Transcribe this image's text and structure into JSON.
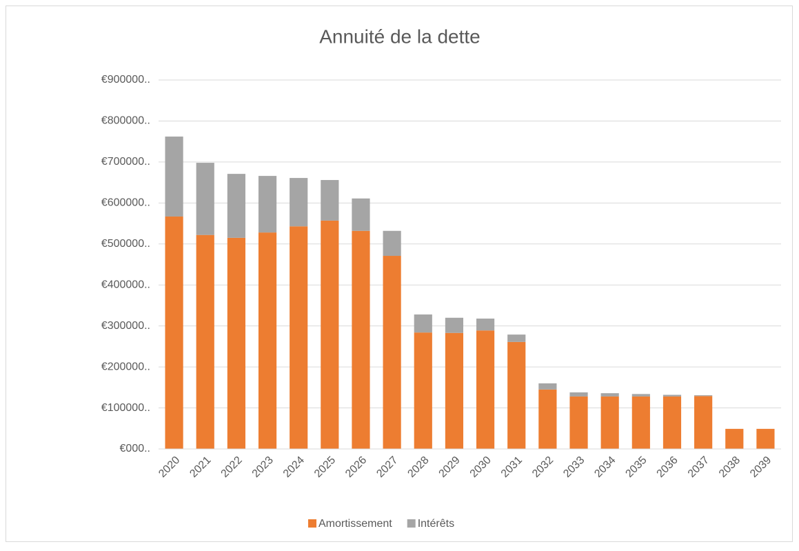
{
  "chart_data": {
    "type": "stacked_bar",
    "title": "Annuité de la dette",
    "categories": [
      "2020",
      "2021",
      "2022",
      "2023",
      "2024",
      "2025",
      "2026",
      "2027",
      "2028",
      "2029",
      "2030",
      "2031",
      "2032",
      "2033",
      "2034",
      "2035",
      "2036",
      "2037",
      "2038",
      "2039"
    ],
    "series": [
      {
        "name": "Amortissement",
        "color": "#ed7d31",
        "values": [
          567000,
          522000,
          515000,
          528000,
          543000,
          557000,
          532000,
          471000,
          284000,
          283000,
          289000,
          261000,
          145000,
          128000,
          128000,
          128000,
          128000,
          129000,
          49000,
          49000
        ]
      },
      {
        "name": "Intérêts",
        "color": "#a5a5a5",
        "values": [
          195000,
          176000,
          156000,
          138000,
          118000,
          99000,
          79000,
          61000,
          44000,
          37000,
          29000,
          18000,
          15000,
          10000,
          8000,
          6000,
          4000,
          2000,
          0,
          0
        ]
      }
    ],
    "ylim": [
      0,
      900000
    ],
    "yticks": [
      {
        "value": 0,
        "label": "€000.."
      },
      {
        "value": 100000,
        "label": "€100000.."
      },
      {
        "value": 200000,
        "label": "€200000.."
      },
      {
        "value": 300000,
        "label": "€300000.."
      },
      {
        "value": 400000,
        "label": "€400000.."
      },
      {
        "value": 500000,
        "label": "€500000.."
      },
      {
        "value": 600000,
        "label": "€600000.."
      },
      {
        "value": 700000,
        "label": "€700000.."
      },
      {
        "value": 800000,
        "label": "€800000.."
      },
      {
        "value": 900000,
        "label": "€900000.."
      }
    ],
    "grid": true,
    "legend": "bottom"
  }
}
